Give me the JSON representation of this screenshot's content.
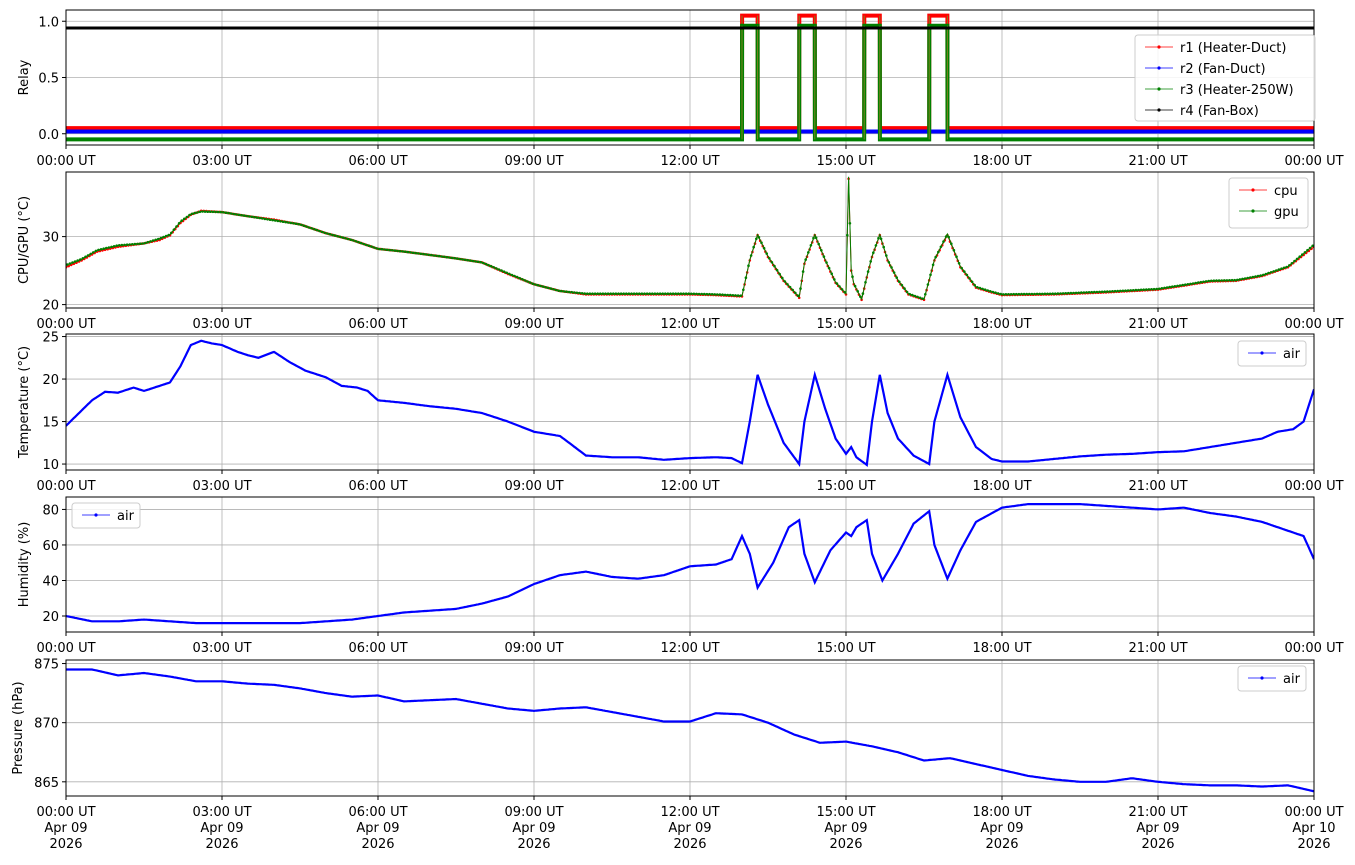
{
  "x_tick_labels": [
    "00:00 UT",
    "03:00 UT",
    "06:00 UT",
    "09:00 UT",
    "12:00 UT",
    "15:00 UT",
    "18:00 UT",
    "21:00 UT",
    "00:00 UT"
  ],
  "x_date_lines": [
    "Apr 09",
    "Apr 09",
    "Apr 09",
    "Apr 09",
    "Apr 09",
    "Apr 09",
    "Apr 09",
    "Apr 09",
    "Apr 10"
  ],
  "x_year_lines": [
    "2026",
    "2026",
    "2026",
    "2026",
    "2026",
    "2026",
    "2026",
    "2026",
    "2026"
  ],
  "chart_data": [
    {
      "type": "line",
      "ylabel": "Relay",
      "x_unit": "hours since 00:00 UT Apr 09 2026",
      "xlim": [
        0,
        24
      ],
      "ylim": [
        -0.1,
        1.1
      ],
      "yticks": [
        0.0,
        0.5,
        1.0
      ],
      "ytick_labels": [
        "0.0",
        "0.5",
        "1.0"
      ],
      "grid": true,
      "legend_position": "right",
      "on_intervals_hours": [
        [
          13.0,
          13.3
        ],
        [
          14.1,
          14.4
        ],
        [
          15.35,
          15.65
        ],
        [
          16.6,
          16.95
        ]
      ],
      "series": [
        {
          "name": "r1 (Heater-Duct)",
          "color": "#ff0000",
          "off_value": 0.05,
          "on_value": 1.05,
          "switching": true
        },
        {
          "name": "r2 (Fan-Duct)",
          "color": "#0000ff",
          "off_value": 0.02,
          "on_value": 0.02,
          "switching": false
        },
        {
          "name": "r3 (Heater-250W)",
          "color": "#008000",
          "off_value": -0.05,
          "on_value": 0.96,
          "switching": true
        },
        {
          "name": "r4 (Fan-Box)",
          "color": "#000000",
          "off_value": 0.94,
          "on_value": 0.94,
          "switching": false
        }
      ]
    },
    {
      "type": "line",
      "ylabel": "CPU/GPU (°C)",
      "xlim": [
        0,
        24
      ],
      "ylim": [
        19.5,
        39.5
      ],
      "yticks": [
        20,
        30
      ],
      "ytick_labels": [
        "20",
        "30"
      ],
      "grid": true,
      "legend_position": "top-right",
      "series": [
        {
          "name": "cpu",
          "color": "#ff0000",
          "x": [
            0,
            0.3,
            0.6,
            1.0,
            1.5,
            1.8,
            2.0,
            2.2,
            2.4,
            2.6,
            3.0,
            3.5,
            4.0,
            4.5,
            5.0,
            5.5,
            6.0,
            6.5,
            7.0,
            7.5,
            8.0,
            8.5,
            9.0,
            9.5,
            10.0,
            11.0,
            12.0,
            12.5,
            13.0,
            13.15,
            13.3,
            13.5,
            13.8,
            14.1,
            14.2,
            14.4,
            14.6,
            14.8,
            15.0,
            15.05,
            15.1,
            15.15,
            15.3,
            15.4,
            15.5,
            15.65,
            15.8,
            16.0,
            16.2,
            16.5,
            16.65,
            16.7,
            16.95,
            17.2,
            17.5,
            17.8,
            18.0,
            19.0,
            20.0,
            21.0,
            21.5,
            22.0,
            22.5,
            23.0,
            23.5,
            24.0
          ],
          "y": [
            25.5,
            26.5,
            27.8,
            28.5,
            29.0,
            29.5,
            30.2,
            32.0,
            33.2,
            33.8,
            33.6,
            33.0,
            32.5,
            31.8,
            30.5,
            29.5,
            28.2,
            27.8,
            27.3,
            26.8,
            26.2,
            24.5,
            23.0,
            22.0,
            21.5,
            21.5,
            21.5,
            21.4,
            21.2,
            26.5,
            30.2,
            27.0,
            23.5,
            21.0,
            26.0,
            30.2,
            26.5,
            23.2,
            21.5,
            38.5,
            25.0,
            23.0,
            20.7,
            24.0,
            27.0,
            30.2,
            26.5,
            23.5,
            21.5,
            20.7,
            25.0,
            26.5,
            30.2,
            25.5,
            22.5,
            21.8,
            21.4,
            21.5,
            21.8,
            22.2,
            22.8,
            23.4,
            23.5,
            24.2,
            25.5,
            28.5
          ]
        },
        {
          "name": "gpu",
          "color": "#008000",
          "x": [
            0,
            0.3,
            0.6,
            1.0,
            1.5,
            1.8,
            2.0,
            2.2,
            2.4,
            2.6,
            3.0,
            3.5,
            4.0,
            4.5,
            5.0,
            5.5,
            6.0,
            6.5,
            7.0,
            7.5,
            8.0,
            8.5,
            9.0,
            9.5,
            10.0,
            11.0,
            12.0,
            12.5,
            13.0,
            13.15,
            13.3,
            13.5,
            13.8,
            14.1,
            14.2,
            14.4,
            14.6,
            14.8,
            15.0,
            15.05,
            15.1,
            15.15,
            15.3,
            15.4,
            15.5,
            15.65,
            15.8,
            16.0,
            16.2,
            16.5,
            16.65,
            16.7,
            16.95,
            17.2,
            17.5,
            17.8,
            18.0,
            19.0,
            20.0,
            21.0,
            21.5,
            22.0,
            22.5,
            23.0,
            23.5,
            24.0
          ],
          "y": [
            25.8,
            26.7,
            28.0,
            28.7,
            29.0,
            29.7,
            30.3,
            32.2,
            33.3,
            33.7,
            33.6,
            33.0,
            32.4,
            31.8,
            30.5,
            29.5,
            28.2,
            27.8,
            27.3,
            26.8,
            26.2,
            24.6,
            23.0,
            22.0,
            21.6,
            21.6,
            21.6,
            21.5,
            21.3,
            26.6,
            30.3,
            27.1,
            23.6,
            21.1,
            26.1,
            30.3,
            26.6,
            23.3,
            21.6,
            38.8,
            25.1,
            23.1,
            20.8,
            24.1,
            27.1,
            30.3,
            26.6,
            23.6,
            21.6,
            20.8,
            25.1,
            26.6,
            30.4,
            25.6,
            22.6,
            21.9,
            21.5,
            21.6,
            21.9,
            22.3,
            22.9,
            23.5,
            23.6,
            24.3,
            25.6,
            28.8
          ]
        }
      ]
    },
    {
      "type": "line",
      "ylabel": "Temperature (°C)",
      "xlim": [
        0,
        24
      ],
      "ylim": [
        9.3,
        25.3
      ],
      "yticks": [
        10,
        15,
        20,
        25
      ],
      "ytick_labels": [
        "10",
        "15",
        "20",
        "25"
      ],
      "grid": true,
      "legend_position": "top-right",
      "series": [
        {
          "name": "air",
          "color": "#0000ff",
          "x": [
            0,
            0.25,
            0.5,
            0.75,
            1.0,
            1.3,
            1.5,
            1.8,
            2.0,
            2.2,
            2.4,
            2.6,
            2.8,
            3.0,
            3.3,
            3.5,
            3.7,
            4.0,
            4.3,
            4.6,
            5.0,
            5.3,
            5.6,
            5.8,
            6.0,
            6.5,
            7.0,
            7.5,
            8.0,
            8.5,
            9.0,
            9.5,
            10.0,
            10.5,
            11.0,
            11.5,
            12.0,
            12.5,
            12.8,
            13.0,
            13.15,
            13.3,
            13.5,
            13.8,
            14.1,
            14.2,
            14.4,
            14.6,
            14.8,
            15.0,
            15.1,
            15.2,
            15.4,
            15.5,
            15.65,
            15.8,
            16.0,
            16.3,
            16.6,
            16.7,
            16.95,
            17.2,
            17.5,
            17.8,
            18.0,
            18.5,
            19.0,
            19.5,
            20.0,
            20.5,
            21.0,
            21.5,
            22.0,
            22.5,
            23.0,
            23.3,
            23.6,
            23.8,
            24.0
          ],
          "y": [
            14.5,
            16.0,
            17.5,
            18.5,
            18.4,
            19.0,
            18.6,
            19.2,
            19.6,
            21.5,
            24.0,
            24.5,
            24.2,
            24.0,
            23.2,
            22.8,
            22.5,
            23.2,
            22.0,
            21.0,
            20.2,
            19.2,
            19.0,
            18.6,
            17.5,
            17.2,
            16.8,
            16.5,
            16.0,
            15.0,
            13.8,
            13.3,
            11.0,
            10.8,
            10.8,
            10.5,
            10.7,
            10.8,
            10.7,
            10.1,
            15.0,
            20.5,
            17.0,
            12.5,
            10.0,
            15.0,
            20.5,
            16.5,
            13.0,
            11.2,
            12.0,
            10.8,
            9.9,
            15.0,
            20.5,
            16.0,
            13.0,
            11.0,
            10.0,
            15.0,
            20.5,
            15.5,
            12.0,
            10.6,
            10.3,
            10.3,
            10.6,
            10.9,
            11.1,
            11.2,
            11.4,
            11.5,
            12.0,
            12.5,
            13.0,
            13.8,
            14.1,
            15.0,
            18.8
          ]
        }
      ]
    },
    {
      "type": "line",
      "ylabel": "Humidity (%)",
      "xlim": [
        0,
        24
      ],
      "ylim": [
        11,
        87
      ],
      "yticks": [
        20,
        40,
        60,
        80
      ],
      "ytick_labels": [
        "20",
        "40",
        "60",
        "80"
      ],
      "grid": true,
      "legend_position": "top-left",
      "series": [
        {
          "name": "air",
          "color": "#0000ff",
          "x": [
            0,
            0.5,
            1.0,
            1.5,
            2.0,
            2.5,
            3.0,
            3.5,
            4.0,
            4.5,
            5.0,
            5.5,
            6.0,
            6.5,
            7.0,
            7.5,
            8.0,
            8.5,
            9.0,
            9.5,
            10.0,
            10.5,
            11.0,
            11.5,
            12.0,
            12.5,
            12.8,
            13.0,
            13.15,
            13.3,
            13.6,
            13.9,
            14.1,
            14.2,
            14.4,
            14.7,
            15.0,
            15.1,
            15.2,
            15.4,
            15.5,
            15.7,
            16.0,
            16.3,
            16.6,
            16.7,
            16.95,
            17.2,
            17.5,
            18.0,
            18.5,
            19.0,
            19.5,
            20.0,
            20.5,
            21.0,
            21.5,
            22.0,
            22.5,
            23.0,
            23.5,
            23.8,
            24.0
          ],
          "y": [
            20,
            17,
            17,
            18,
            17,
            16,
            16,
            16,
            16,
            16,
            17,
            18,
            20,
            22,
            23,
            24,
            27,
            31,
            38,
            43,
            45,
            42,
            41,
            43,
            48,
            49,
            52,
            65,
            55,
            36,
            50,
            70,
            74,
            55,
            39,
            57,
            67,
            65,
            70,
            74,
            55,
            40,
            55,
            72,
            79,
            60,
            41,
            57,
            73,
            81,
            83,
            83,
            83,
            82,
            81,
            80,
            81,
            78,
            76,
            73,
            68,
            65,
            52
          ]
        }
      ]
    },
    {
      "type": "line",
      "ylabel": "Pressure (hPa)",
      "xlim": [
        0,
        24
      ],
      "ylim": [
        863.8,
        875.3
      ],
      "yticks": [
        865,
        870,
        875
      ],
      "ytick_labels": [
        "865",
        "870",
        "875"
      ],
      "grid": true,
      "legend_position": "top-right",
      "series": [
        {
          "name": "air",
          "color": "#0000ff",
          "x": [
            0,
            0.5,
            1.0,
            1.5,
            2.0,
            2.5,
            3.0,
            3.5,
            4.0,
            4.5,
            5.0,
            5.5,
            6.0,
            6.5,
            7.0,
            7.5,
            8.0,
            8.5,
            9.0,
            9.5,
            10.0,
            10.5,
            11.0,
            11.5,
            12.0,
            12.5,
            13.0,
            13.5,
            14.0,
            14.5,
            15.0,
            15.5,
            16.0,
            16.5,
            17.0,
            17.5,
            18.0,
            18.5,
            19.0,
            19.5,
            20.0,
            20.5,
            21.0,
            21.5,
            22.0,
            22.5,
            23.0,
            23.5,
            24.0
          ],
          "y": [
            874.5,
            874.5,
            874.0,
            874.2,
            873.9,
            873.5,
            873.5,
            873.3,
            873.2,
            872.9,
            872.5,
            872.2,
            872.3,
            871.8,
            871.9,
            872.0,
            871.6,
            871.2,
            871.0,
            871.2,
            871.3,
            870.9,
            870.5,
            870.1,
            870.1,
            870.8,
            870.7,
            870.0,
            869.0,
            868.3,
            868.4,
            868.0,
            867.5,
            866.8,
            867.0,
            866.5,
            866.0,
            865.5,
            865.2,
            865.0,
            865.0,
            865.3,
            865.0,
            864.8,
            864.7,
            864.7,
            864.6,
            864.7,
            864.2
          ]
        }
      ]
    }
  ]
}
